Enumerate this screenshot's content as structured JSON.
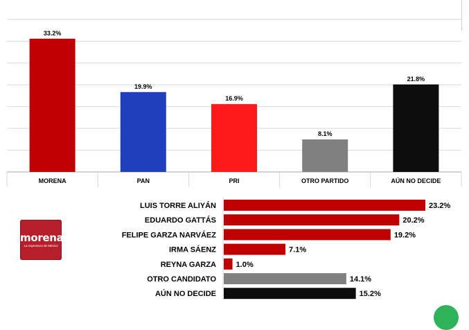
{
  "logo": {
    "label": "morena",
    "tagline": "La esperanza de México",
    "color": "#b81d2a"
  },
  "corner_badge": {
    "color": "#2fb35a"
  },
  "chart_data": [
    {
      "type": "bar",
      "orientation": "vertical",
      "categories": [
        "MORENA",
        "PAN",
        "PRI",
        "OTRO PARTIDO",
        "AÚN NO DECIDE"
      ],
      "values": [
        33.2,
        19.9,
        16.9,
        8.1,
        21.8
      ],
      "value_labels": [
        "33.2%",
        "19.9%",
        "16.9%",
        "8.1%",
        "21.8%"
      ],
      "colors": [
        "#c00000",
        "#1f3fbf",
        "#ff1a1a",
        "#808080",
        "#0d0d0d"
      ],
      "ylim": [
        0,
        38
      ],
      "grid": true,
      "legend": "none"
    },
    {
      "type": "bar",
      "orientation": "horizontal",
      "categories": [
        "LUIS TORRE ALIYÁN",
        "EDUARDO GATTÁS",
        "FELIPE GARZA NARVÁEZ",
        "IRMA SÁENZ",
        "REYNA GARZA",
        "OTRO CANDIDATO",
        "AÚN NO DECIDE"
      ],
      "values": [
        23.2,
        20.2,
        19.2,
        7.1,
        1.0,
        14.1,
        15.2
      ],
      "value_labels": [
        "23.2%",
        "20.2%",
        "19.2%",
        "7.1%",
        "1.0%",
        "14.1%",
        "15.2%"
      ],
      "colors": [
        "#c00000",
        "#c00000",
        "#c00000",
        "#c00000",
        "#c00000",
        "#808080",
        "#0d0d0d"
      ],
      "xlim": [
        0,
        23.2
      ],
      "grid": false,
      "legend": "none"
    }
  ]
}
